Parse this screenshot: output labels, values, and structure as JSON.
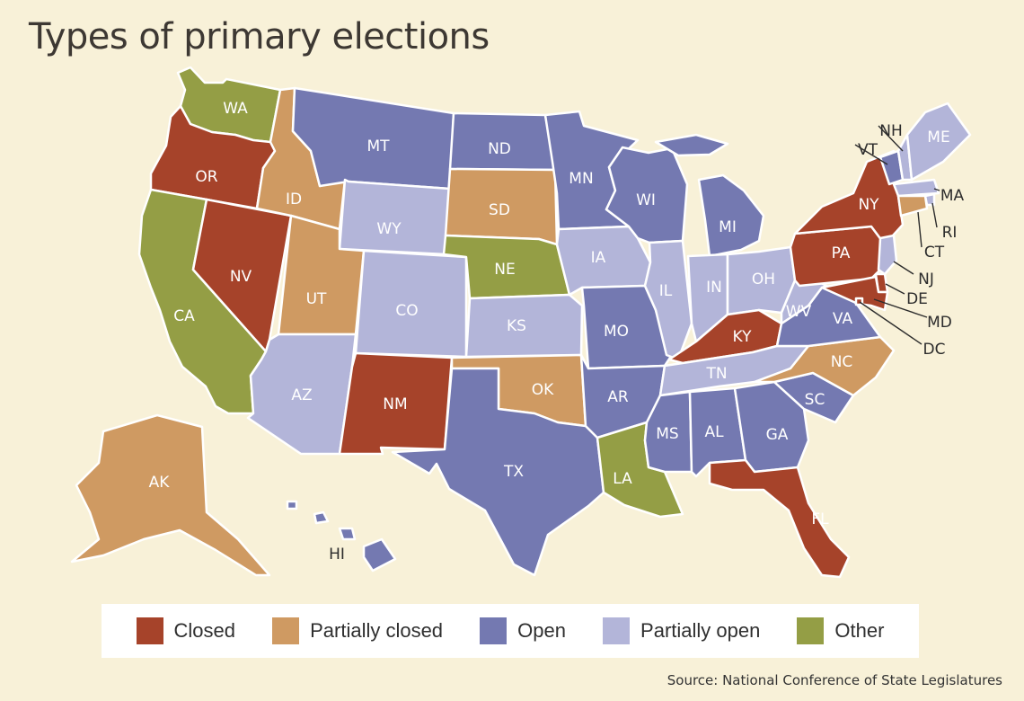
{
  "title": "Types of primary elections",
  "source": "Source: National Conference of State Legislatures",
  "categories": {
    "closed": {
      "label": "Closed",
      "color": "#a6432a"
    },
    "partially_closed": {
      "label": "Partially closed",
      "color": "#cf9a62"
    },
    "open": {
      "label": "Open",
      "color": "#7479b1"
    },
    "partially_open": {
      "label": "Partially open",
      "color": "#b3b5d9"
    },
    "other": {
      "label": "Other",
      "color": "#949e45"
    }
  },
  "legend_order": [
    "closed",
    "partially_closed",
    "open",
    "partially_open",
    "other"
  ],
  "states": [
    {
      "abbr": "WA",
      "type": "other"
    },
    {
      "abbr": "OR",
      "type": "closed"
    },
    {
      "abbr": "CA",
      "type": "other"
    },
    {
      "abbr": "NV",
      "type": "closed"
    },
    {
      "abbr": "ID",
      "type": "partially_closed"
    },
    {
      "abbr": "MT",
      "type": "open"
    },
    {
      "abbr": "WY",
      "type": "partially_open"
    },
    {
      "abbr": "UT",
      "type": "partially_closed"
    },
    {
      "abbr": "AZ",
      "type": "partially_open"
    },
    {
      "abbr": "CO",
      "type": "partially_open"
    },
    {
      "abbr": "NM",
      "type": "closed"
    },
    {
      "abbr": "ND",
      "type": "open"
    },
    {
      "abbr": "SD",
      "type": "partially_closed"
    },
    {
      "abbr": "NE",
      "type": "other"
    },
    {
      "abbr": "KS",
      "type": "partially_open"
    },
    {
      "abbr": "OK",
      "type": "partially_closed"
    },
    {
      "abbr": "TX",
      "type": "open"
    },
    {
      "abbr": "MN",
      "type": "open"
    },
    {
      "abbr": "IA",
      "type": "partially_open"
    },
    {
      "abbr": "MO",
      "type": "open"
    },
    {
      "abbr": "AR",
      "type": "open"
    },
    {
      "abbr": "LA",
      "type": "other"
    },
    {
      "abbr": "WI",
      "type": "open"
    },
    {
      "abbr": "IL",
      "type": "partially_open"
    },
    {
      "abbr": "MI",
      "type": "open"
    },
    {
      "abbr": "IN",
      "type": "partially_open"
    },
    {
      "abbr": "OH",
      "type": "partially_open"
    },
    {
      "abbr": "KY",
      "type": "closed"
    },
    {
      "abbr": "TN",
      "type": "partially_open"
    },
    {
      "abbr": "MS",
      "type": "open"
    },
    {
      "abbr": "AL",
      "type": "open"
    },
    {
      "abbr": "GA",
      "type": "open"
    },
    {
      "abbr": "FL",
      "type": "closed"
    },
    {
      "abbr": "SC",
      "type": "open"
    },
    {
      "abbr": "NC",
      "type": "partially_closed"
    },
    {
      "abbr": "VA",
      "type": "open"
    },
    {
      "abbr": "WV",
      "type": "partially_open"
    },
    {
      "abbr": "PA",
      "type": "closed"
    },
    {
      "abbr": "NY",
      "type": "closed"
    },
    {
      "abbr": "VT",
      "type": "open"
    },
    {
      "abbr": "NH",
      "type": "partially_open"
    },
    {
      "abbr": "ME",
      "type": "partially_open"
    },
    {
      "abbr": "MA",
      "type": "partially_open"
    },
    {
      "abbr": "RI",
      "type": "partially_open"
    },
    {
      "abbr": "CT",
      "type": "partially_closed"
    },
    {
      "abbr": "NJ",
      "type": "partially_open"
    },
    {
      "abbr": "DE",
      "type": "closed"
    },
    {
      "abbr": "MD",
      "type": "closed"
    },
    {
      "abbr": "DC",
      "type": "closed"
    },
    {
      "abbr": "AK",
      "type": "partially_closed"
    },
    {
      "abbr": "HI",
      "type": "open"
    }
  ]
}
